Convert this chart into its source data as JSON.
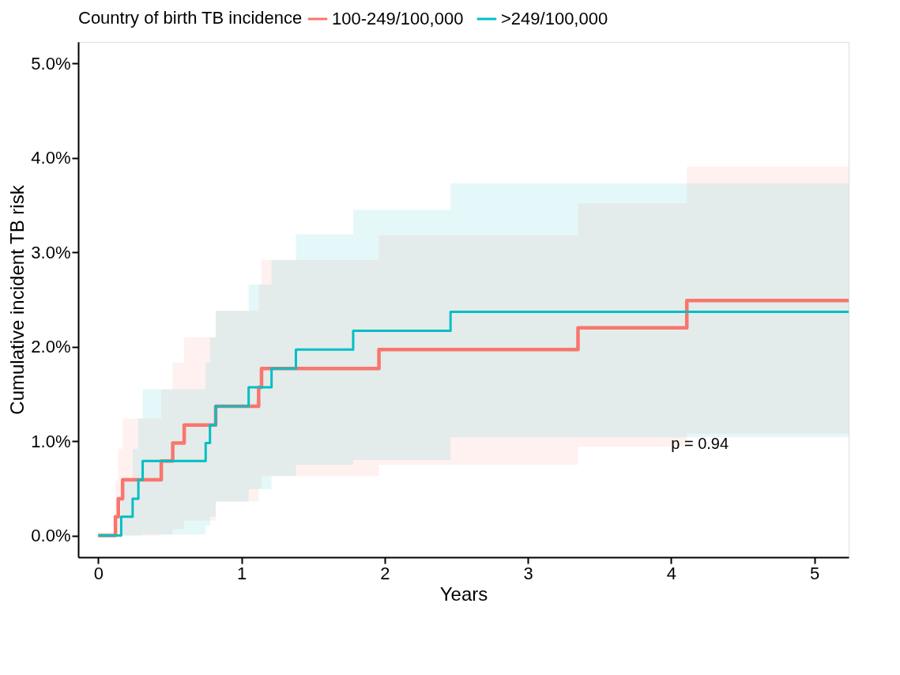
{
  "chart_data": {
    "type": "step",
    "xlabel": "Years",
    "ylabel": "Cumulative incident TB risk",
    "legend_title": "Country of birth TB incidence",
    "legend": "top",
    "grid": false,
    "marker": "none",
    "line_style": "solid",
    "xlim": [
      -0.14,
      5.24
    ],
    "xticks": [
      0,
      1,
      2,
      3,
      4,
      5
    ],
    "ylim": [
      -0.23,
      5.23
    ],
    "yticks": [
      {
        "value": 0,
        "label": "0.0%"
      },
      {
        "value": 1,
        "label": "1.0%"
      },
      {
        "value": 2,
        "label": "2.0%"
      },
      {
        "value": 3,
        "label": "3.0%"
      },
      {
        "value": 4,
        "label": "4.0%"
      },
      {
        "value": 5,
        "label": "5.0%"
      }
    ],
    "annotations": [
      {
        "text": "p = 0.94",
        "x": 4,
        "y": 0.97
      }
    ],
    "series": [
      {
        "name": "100-249/100,000",
        "color": "#f8766d",
        "x": [
          0,
          0.12,
          0.14,
          0.17,
          0.44,
          0.52,
          0.6,
          0.82,
          1.12,
          1.14,
          1.96,
          3.35,
          4.11,
          5.24
        ],
        "values": [
          0,
          0.2,
          0.39,
          0.59,
          0.79,
          0.98,
          1.17,
          1.37,
          1.57,
          1.77,
          1.97,
          2.2,
          2.49,
          2.49
        ],
        "lower": [
          0,
          0,
          0,
          0,
          0.01,
          0.07,
          0.16,
          0.36,
          0.5,
          0.63,
          0.75,
          0.94,
          1.08,
          1.08
        ],
        "upper": [
          0,
          0.58,
          0.92,
          1.24,
          1.55,
          1.83,
          2.1,
          2.38,
          2.66,
          2.92,
          3.18,
          3.52,
          3.91,
          3.91
        ]
      },
      {
        "name": ">249/100,000",
        "color": "#00bfc4",
        "x": [
          0,
          0.16,
          0.24,
          0.28,
          0.31,
          0.75,
          0.78,
          0.82,
          1.05,
          1.21,
          1.38,
          1.78,
          2.46,
          5.24
        ],
        "values": [
          0,
          0.2,
          0.39,
          0.59,
          0.79,
          0.98,
          1.17,
          1.37,
          1.57,
          1.77,
          1.97,
          2.17,
          2.37,
          2.37
        ],
        "lower": [
          0,
          0,
          0,
          0,
          0.01,
          0.11,
          0.2,
          0.36,
          0.49,
          0.63,
          0.75,
          0.8,
          1.04,
          1.04
        ],
        "upper": [
          0,
          0.6,
          0.92,
          1.24,
          1.55,
          1.83,
          2.1,
          2.38,
          2.66,
          2.92,
          3.19,
          3.45,
          3.73,
          3.73
        ]
      }
    ]
  }
}
